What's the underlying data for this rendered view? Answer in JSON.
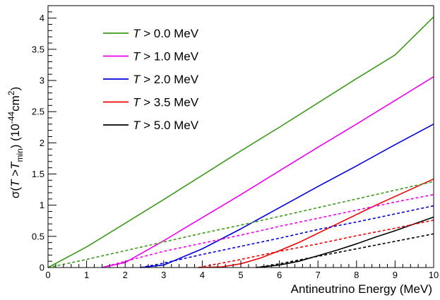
{
  "chart_data": {
    "type": "line",
    "title": "",
    "xlabel": "Antineutrino Energy (MeV)",
    "ylabel": {
      "sigma": "σ(",
      "T": "T",
      "gt": " >",
      "Tmin": "T",
      "min_sub": "min",
      "close": ") (10",
      "exp1": "-44",
      "cm": "cm",
      "exp2": "2",
      "end": ")"
    },
    "xlim": [
      0,
      10
    ],
    "ylim": [
      0,
      4.2
    ],
    "xticks": [
      "0",
      "1",
      "2",
      "3",
      "4",
      "5",
      "6",
      "7",
      "8",
      "9",
      "10"
    ],
    "yticks": [
      "0",
      "0.5",
      "1",
      "1.5",
      "2",
      "2.5",
      "3",
      "3.5",
      "4"
    ],
    "grid": false,
    "legend_position": "top-left",
    "series": [
      {
        "name": "T > 0.0 MeV",
        "legend": {
          "T": "T",
          "rest": " > 0.0 MeV"
        },
        "color": "#3a9a1a",
        "style": "solid",
        "x": [
          0,
          1,
          2,
          3,
          4,
          5,
          6,
          7,
          8,
          9,
          10
        ],
        "y": [
          0,
          0.33,
          0.71,
          1.09,
          1.48,
          1.87,
          2.25,
          2.64,
          3.03,
          3.41,
          4.02
        ]
      },
      {
        "name": "T > 1.0 MeV",
        "legend": {
          "T": "T",
          "rest": " > 1.0 MeV"
        },
        "color": "#ee00ee",
        "style": "solid",
        "x": [
          1.4,
          2,
          3,
          4,
          5,
          6,
          7,
          8,
          9,
          10
        ],
        "y": [
          0,
          0.08,
          0.43,
          0.8,
          1.17,
          1.55,
          1.93,
          2.3,
          2.68,
          3.06
        ]
      },
      {
        "name": "T > 2.0 MeV",
        "legend": {
          "T": "T",
          "rest": " > 2.0 MeV"
        },
        "color": "#0000dd",
        "style": "solid",
        "x": [
          2.4,
          3,
          4,
          5,
          6,
          7,
          8,
          9,
          10
        ],
        "y": [
          0,
          0.04,
          0.3,
          0.62,
          0.96,
          1.3,
          1.63,
          1.97,
          2.3
        ]
      },
      {
        "name": "T > 3.5 MeV",
        "legend": {
          "T": "T",
          "rest": " > 3.5 MeV"
        },
        "color": "#ee0000",
        "style": "solid",
        "x": [
          3.9,
          4.5,
          5,
          5.5,
          6,
          6.5,
          7,
          7.5,
          8,
          8.5,
          9,
          9.5,
          10
        ],
        "y": [
          0,
          0.01,
          0.06,
          0.15,
          0.27,
          0.4,
          0.55,
          0.7,
          0.85,
          1.0,
          1.14,
          1.28,
          1.42
        ]
      },
      {
        "name": "T > 5.0 MeV",
        "legend": {
          "T": "T",
          "rest": " > 5.0 MeV"
        },
        "color": "#000000",
        "style": "solid",
        "x": [
          5.4,
          6,
          6.5,
          7,
          7.5,
          8,
          8.5,
          9,
          9.5,
          10
        ],
        "y": [
          0,
          0.04,
          0.1,
          0.19,
          0.28,
          0.38,
          0.49,
          0.59,
          0.7,
          0.81
        ]
      },
      {
        "name": "",
        "color": "#3a9a1a",
        "style": "dashed",
        "x": [
          0,
          1,
          2,
          3,
          4,
          5,
          6,
          7,
          8,
          9,
          10
        ],
        "y": [
          0,
          0.13,
          0.27,
          0.41,
          0.55,
          0.68,
          0.82,
          0.96,
          1.1,
          1.24,
          1.38
        ]
      },
      {
        "name": "",
        "color": "#ee00ee",
        "style": "dashed",
        "x": [
          1.4,
          2,
          3,
          4,
          5,
          6,
          7,
          8,
          9,
          10
        ],
        "y": [
          0,
          0.1,
          0.26,
          0.39,
          0.52,
          0.66,
          0.79,
          0.92,
          1.05,
          1.17
        ]
      },
      {
        "name": "",
        "color": "#0000dd",
        "style": "dashed",
        "x": [
          2.4,
          3,
          4,
          5,
          6,
          7,
          8,
          9,
          10
        ],
        "y": [
          0,
          0.07,
          0.21,
          0.34,
          0.47,
          0.61,
          0.73,
          0.86,
          0.99
        ]
      },
      {
        "name": "",
        "color": "#ee0000",
        "style": "dashed",
        "x": [
          3.9,
          5,
          6,
          7,
          8,
          9,
          10
        ],
        "y": [
          0,
          0.13,
          0.26,
          0.38,
          0.51,
          0.63,
          0.76
        ]
      },
      {
        "name": "",
        "color": "#000000",
        "style": "dashed",
        "x": [
          5.4,
          6,
          7,
          8,
          9,
          10
        ],
        "y": [
          0,
          0.06,
          0.18,
          0.3,
          0.42,
          0.54
        ]
      }
    ]
  }
}
